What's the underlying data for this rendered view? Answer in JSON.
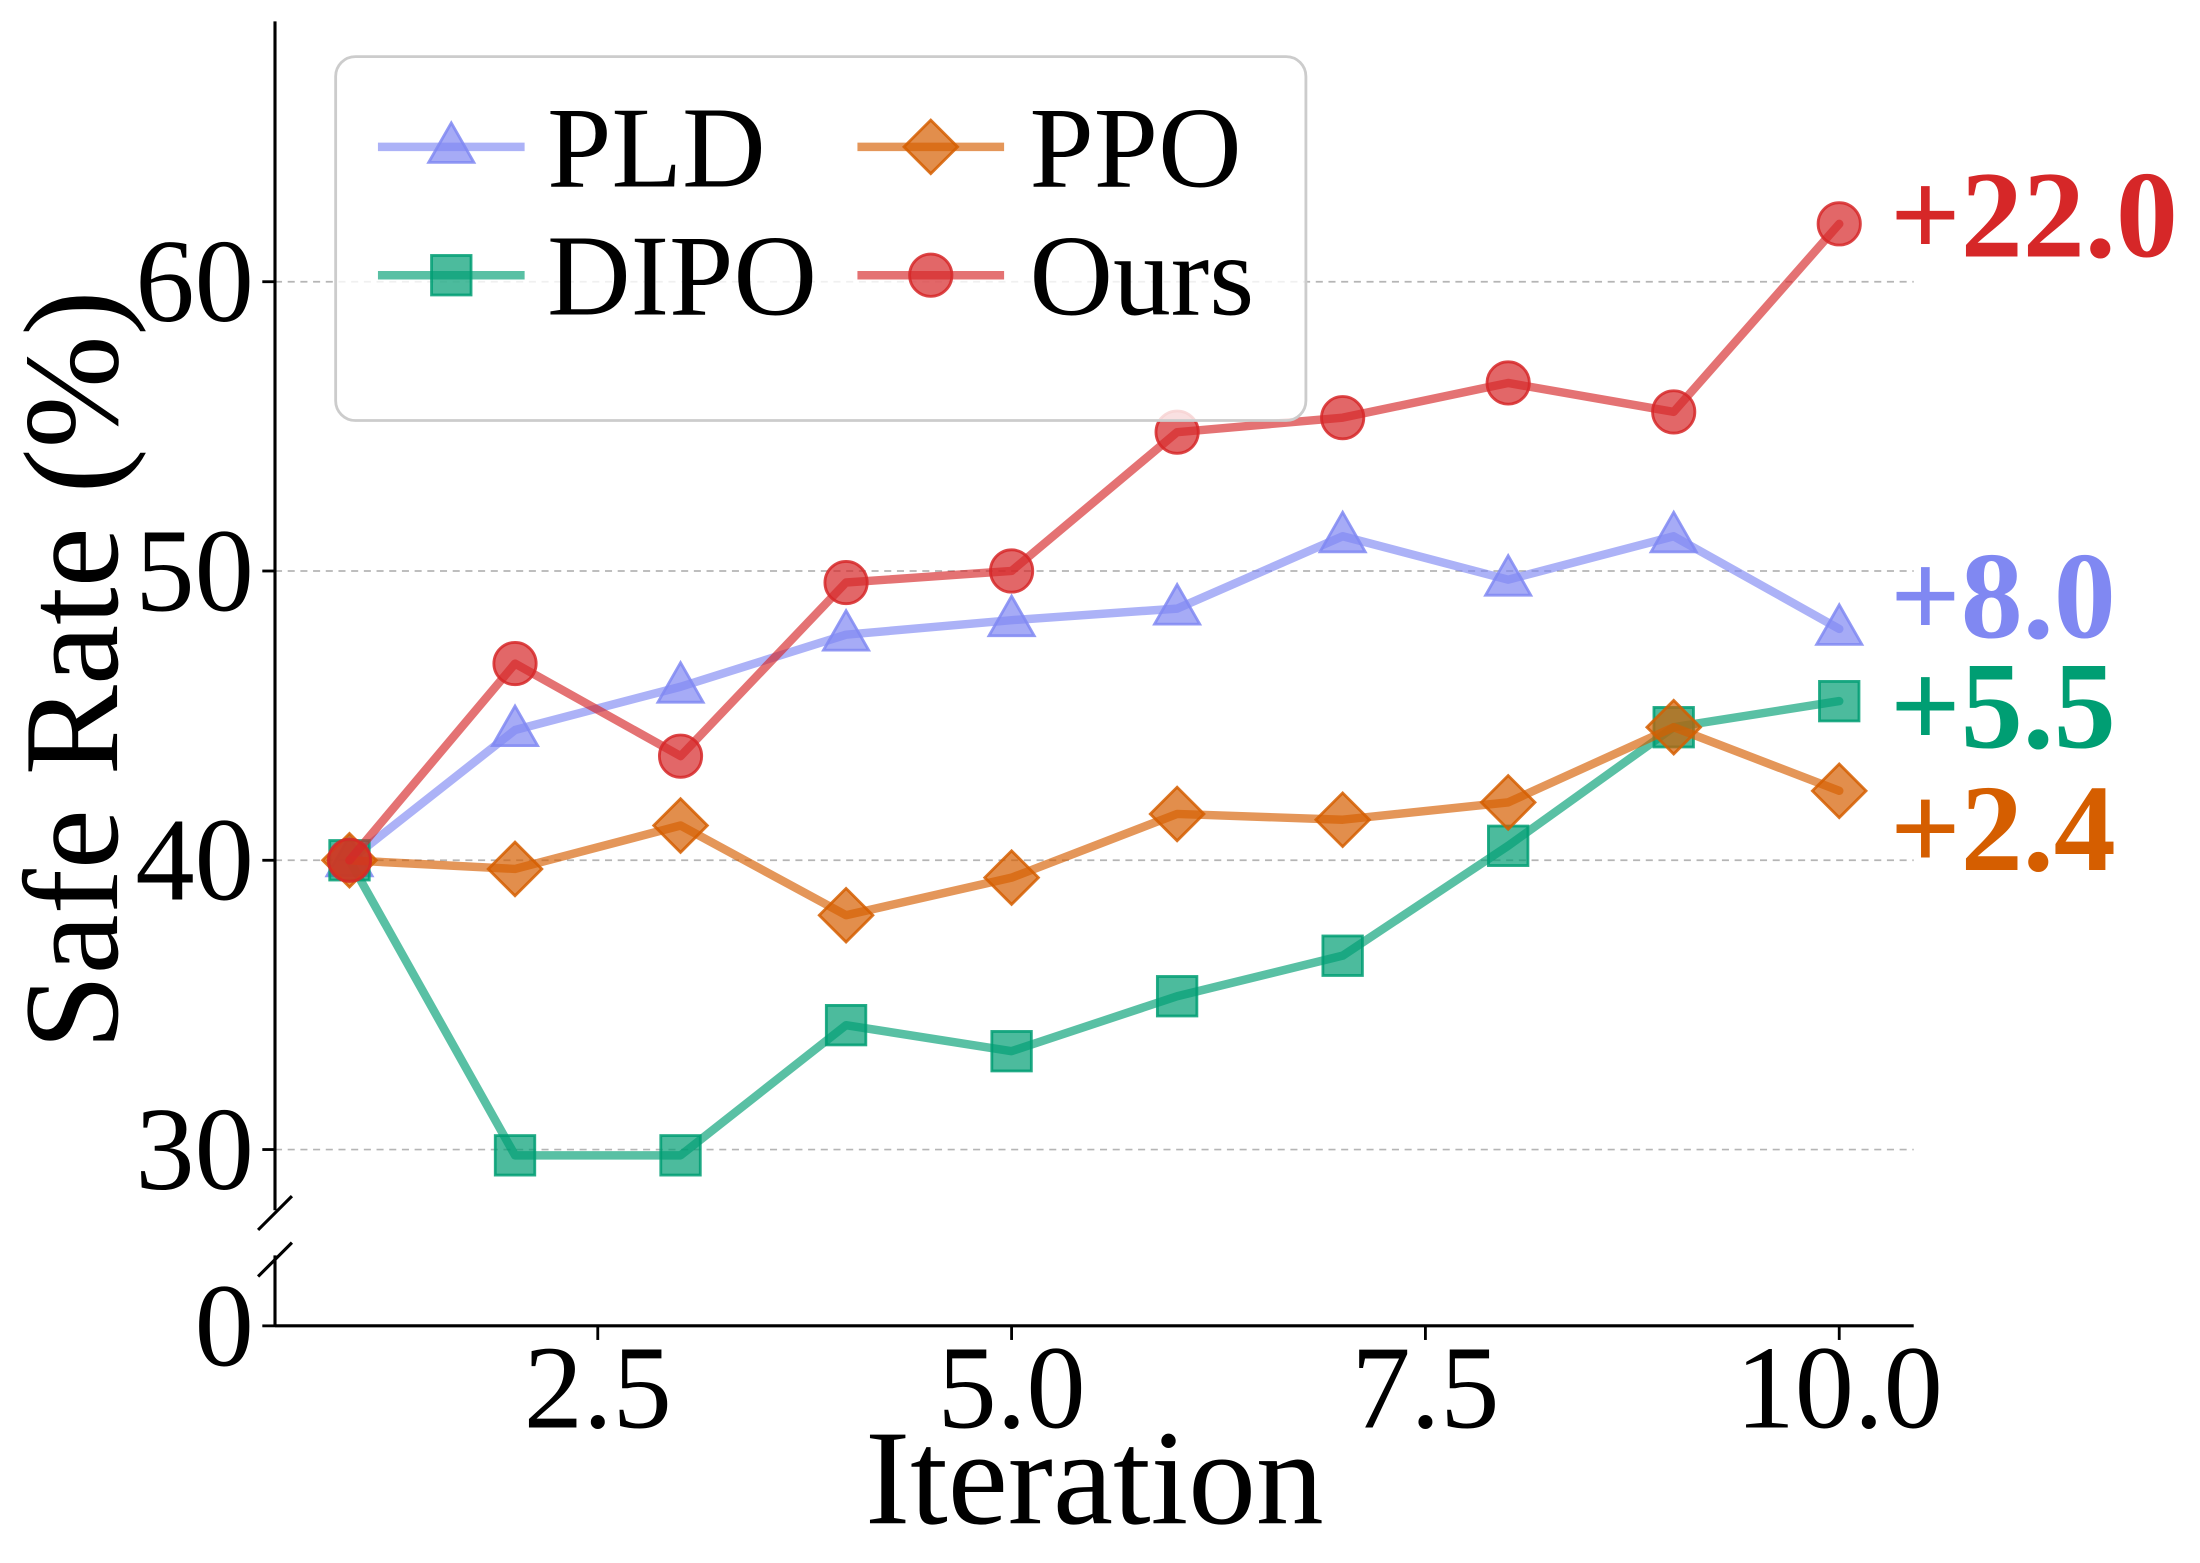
{
  "chart_data": {
    "type": "line",
    "xlabel": "Iteration",
    "ylabel": "Safe Rate (%)",
    "x": [
      1,
      2,
      3,
      4,
      5,
      6,
      7,
      8,
      9,
      10
    ],
    "xlim": [
      0.55,
      10.45
    ],
    "ylim": [
      28,
      69
    ],
    "y_axis_break": true,
    "x_ticks": [
      2.5,
      5.0,
      7.5,
      10.0
    ],
    "x_tick_labels": [
      "2.5",
      "5.0",
      "7.5",
      "10.0"
    ],
    "y_ticks": [
      0,
      30,
      40,
      50,
      60
    ],
    "y_tick_labels": [
      "0",
      "30",
      "40",
      "50",
      "60"
    ],
    "grid": true,
    "legend_position": "upper left",
    "series": [
      {
        "name": "PLD",
        "marker": "triangle",
        "color": "#8088f2",
        "values": [
          40.0,
          44.5,
          46.0,
          47.8,
          48.3,
          48.7,
          51.2,
          49.7,
          51.2,
          48.0
        ],
        "annotation": "+8.0"
      },
      {
        "name": "DIPO",
        "marker": "square",
        "color": "#009e73",
        "values": [
          40.0,
          29.8,
          29.8,
          34.3,
          33.4,
          35.3,
          36.7,
          40.5,
          44.6,
          45.5
        ],
        "annotation": "+5.5"
      },
      {
        "name": "PPO",
        "marker": "diamond",
        "color": "#d55e00",
        "values": [
          40.0,
          39.7,
          41.2,
          38.1,
          39.4,
          41.6,
          41.4,
          42.0,
          44.6,
          42.4
        ],
        "annotation": "+2.4"
      },
      {
        "name": "Ours",
        "marker": "circle",
        "color": "#d62728",
        "values": [
          40.0,
          46.8,
          43.6,
          49.6,
          50.0,
          54.8,
          55.3,
          56.5,
          55.5,
          62.0
        ],
        "annotation": "+22.0"
      }
    ]
  }
}
